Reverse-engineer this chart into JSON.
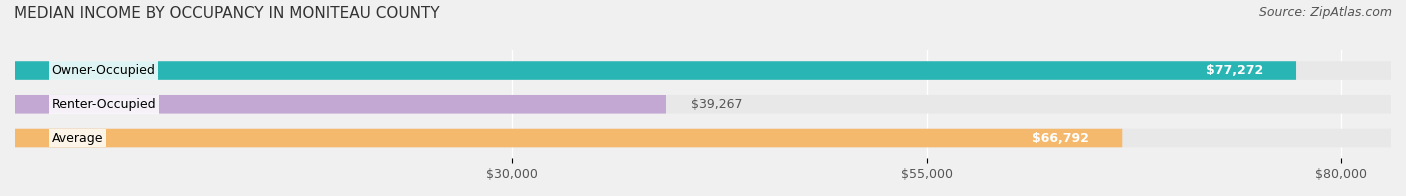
{
  "title": "MEDIAN INCOME BY OCCUPANCY IN MONITEAU COUNTY",
  "source": "Source: ZipAtlas.com",
  "categories": [
    "Owner-Occupied",
    "Renter-Occupied",
    "Average"
  ],
  "values": [
    77272,
    39267,
    66792
  ],
  "bar_colors": [
    "#2ab5b5",
    "#c4a8d4",
    "#f5b96e"
  ],
  "bar_edge_colors": [
    "#2ab5b5",
    "#c4a8d4",
    "#f5b96e"
  ],
  "label_inside": [
    "$77,272",
    "$39,267",
    "$66,792"
  ],
  "label_positions": [
    "inside_right",
    "outside_right",
    "inside_right"
  ],
  "xlim": [
    0,
    83000
  ],
  "xticks": [
    30000,
    55000,
    80000
  ],
  "xtick_labels": [
    "$30,000",
    "$55,000",
    "$80,000"
  ],
  "background_color": "#f0f0f0",
  "bar_background_color": "#e8e8e8",
  "title_fontsize": 11,
  "source_fontsize": 9,
  "tick_fontsize": 9,
  "bar_label_fontsize": 9,
  "category_label_fontsize": 9
}
